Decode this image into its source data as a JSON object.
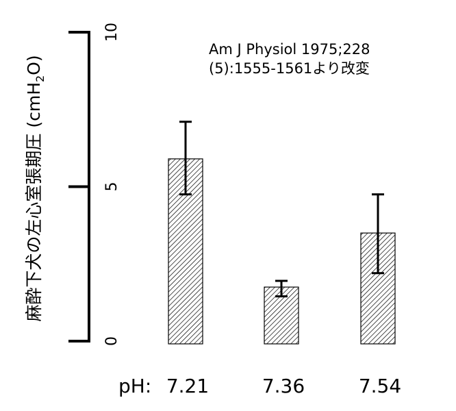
{
  "chart_data": {
    "type": "bar",
    "categories_prefix": "pH:",
    "categories": [
      "7.21",
      "7.36",
      "7.54"
    ],
    "values": [
      5.9,
      1.75,
      3.5
    ],
    "error_high": [
      7.1,
      1.95,
      4.75
    ],
    "error_low": [
      4.75,
      1.45,
      2.2
    ],
    "ylabel_main": "麻酔下犬の左心室張期圧 (cmH",
    "ylabel_sub": "2",
    "ylabel_tail": "O)",
    "yticks": [
      "0",
      "5",
      "10"
    ],
    "ylim": [
      0,
      10
    ],
    "bar_fill": "diagonal-hatch",
    "source_line1": "Am J Physiol 1975;228",
    "source_line2": "(5):1555-1561より改変"
  }
}
